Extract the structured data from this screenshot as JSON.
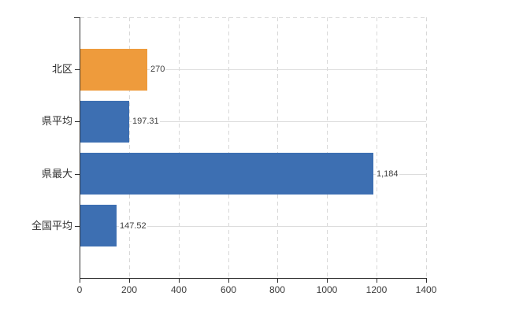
{
  "chart": {
    "title": "",
    "palette": {
      "background": "#FFFFFF",
      "highlight_bar": "#EE9B3C",
      "default_bar": "#3D6FB2",
      "axis": "#2E2E2E",
      "grid": "#D8D8D8",
      "row_grid": "#DCDCDC",
      "category_text": "#2E2E2E",
      "value_text": "#3C3C3C",
      "tick_text": "#3C3C3C"
    }
  },
  "chart_data": {
    "type": "bar",
    "orientation": "horizontal",
    "title": "",
    "xlabel": "",
    "ylabel": "",
    "categories": [
      "北区",
      "県平均",
      "県最大",
      "全国平均"
    ],
    "values": [
      270,
      197.31,
      1184,
      147.52
    ],
    "value_labels": [
      "270",
      "197.31",
      "1,184",
      "147.52"
    ],
    "bar_colors": [
      "#EE9B3C",
      "#3D6FB2",
      "#3D6FB2",
      "#3D6FB2"
    ],
    "xlim": [
      0,
      1400
    ],
    "x_tick_values": [
      0,
      200,
      400,
      600,
      800,
      1000,
      1200,
      1400
    ],
    "x_ticks": [
      "0",
      "200",
      "400",
      "600",
      "800",
      "1000",
      "1200",
      "1400"
    ],
    "grid": true,
    "legend": "none"
  }
}
